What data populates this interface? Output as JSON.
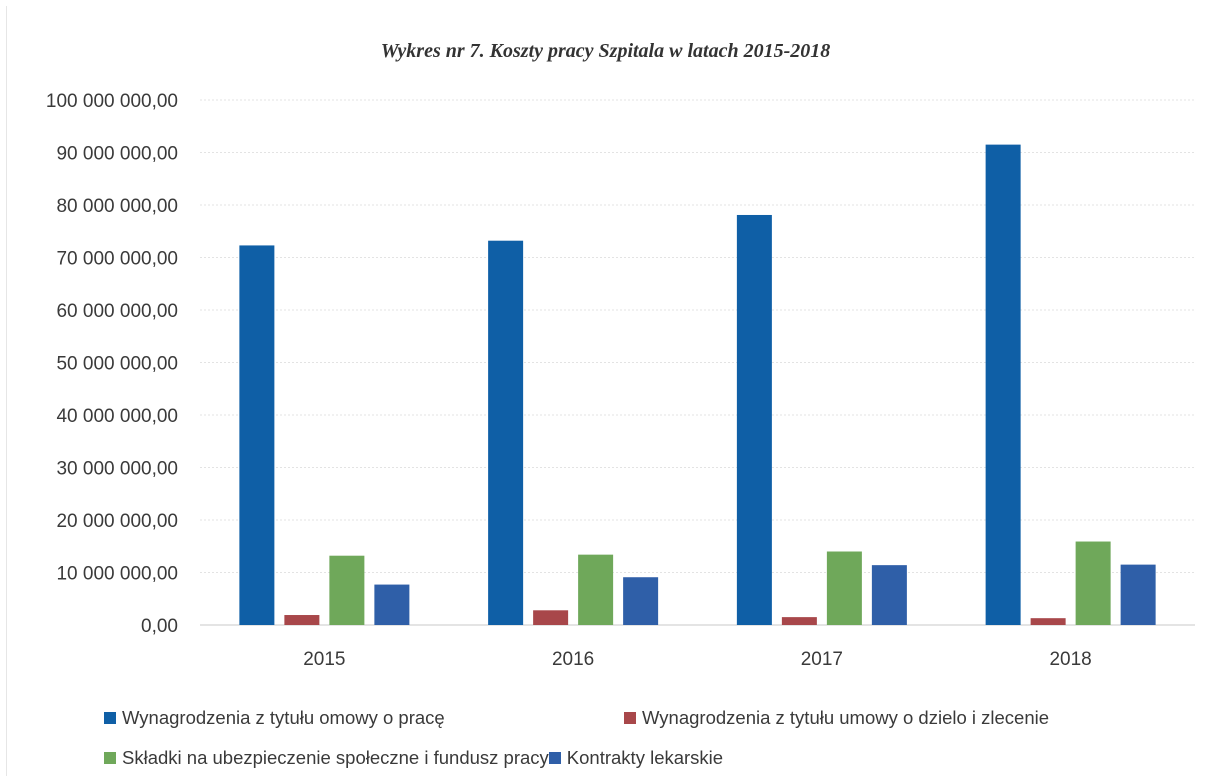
{
  "chart_data": {
    "type": "bar",
    "title": "Wykres nr 7. Koszty pracy Szpitala w latach 2015-2018",
    "categories": [
      "2015",
      "2016",
      "2017",
      "2018"
    ],
    "series": [
      {
        "name": "Wynagrodzenia z tytułu omowy o pracę",
        "color": "#0f5fa6",
        "values": [
          72300000,
          73200000,
          78100000,
          91500000
        ]
      },
      {
        "name": "Wynagrodzenia z tytułu umowy o dzielo i zlecenie",
        "color": "#a8474a",
        "values": [
          1900000,
          2800000,
          1500000,
          1300000
        ]
      },
      {
        "name": "Składki na ubezpieczenie społeczne i fundusz pracy",
        "color": "#6fa85a",
        "values": [
          13200000,
          13400000,
          14000000,
          15900000
        ]
      },
      {
        "name": "Kontrakty lekarskie",
        "color": "#2f5fa8",
        "values": [
          7700000,
          9100000,
          11400000,
          11500000
        ]
      }
    ],
    "ylim": [
      0,
      100000000
    ],
    "yticks": [
      "0,00",
      "10 000 000,00",
      "20 000 000,00",
      "30 000 000,00",
      "40 000 000,00",
      "50 000 000,00",
      "60 000 000,00",
      "70 000 000,00",
      "80 000 000,00",
      "90 000 000,00",
      "100 000 000,00"
    ],
    "grid": true,
    "legend_position": "bottom"
  }
}
